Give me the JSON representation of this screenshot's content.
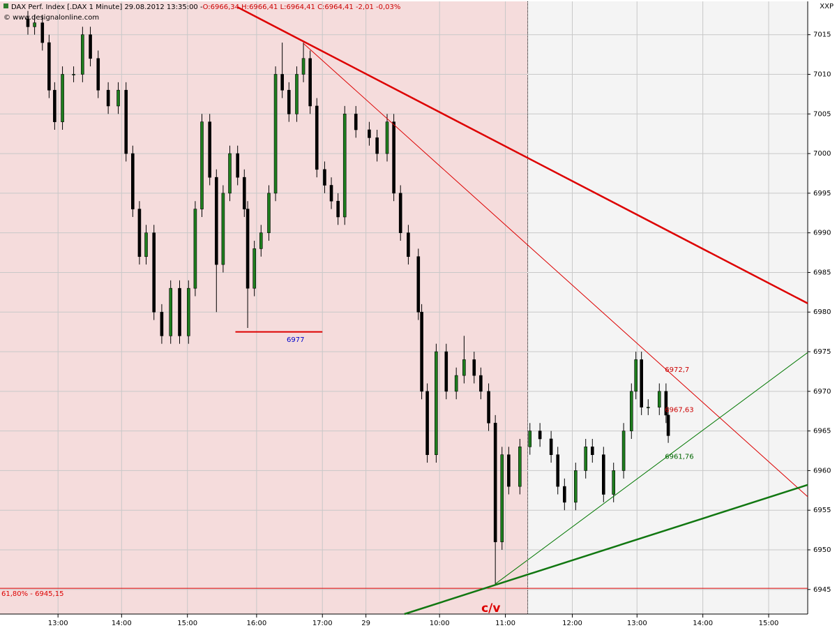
{
  "chart_data": {
    "type": "candlestick",
    "title": "DAX Perf. Index [.DAX  1 Minute] 29.08.2012 13:35:00 - ",
    "header_values": [
      {
        "text": "O:6966,34 H:6966,41 L:6964,41 C:6964,41 -2,01 -0,03%",
        "color": "#cc0000"
      }
    ],
    "copyright": "© www.designalonline.com",
    "corner_label": "XXP",
    "xlim": [
      0,
      724
    ],
    "ylim": [
      6941.9,
      7019.2
    ],
    "yticks": [
      6945,
      6950,
      6955,
      6960,
      6965,
      6970,
      6975,
      6980,
      6985,
      6990,
      6995,
      7000,
      7005,
      7010,
      7015
    ],
    "xticks": [
      {
        "value": 52,
        "label": "13:00"
      },
      {
        "value": 109,
        "label": "14:00"
      },
      {
        "value": 168,
        "label": "15:00"
      },
      {
        "value": 230,
        "label": "16:00"
      },
      {
        "value": 289,
        "label": "17:00"
      },
      {
        "value": 328,
        "label": "29"
      },
      {
        "value": 394,
        "label": "10:00"
      },
      {
        "value": 453,
        "label": "11:00"
      },
      {
        "value": 513,
        "label": "12:00"
      },
      {
        "value": 571,
        "label": "13:00"
      },
      {
        "value": 630,
        "label": "14:00"
      },
      {
        "value": 689,
        "label": "15:00"
      }
    ],
    "grid": true,
    "highlight": {
      "xlim": [
        0,
        473
      ],
      "color": "#f5dcdc",
      "background": "#f4f4f4"
    },
    "up_color": "#1e7d1e",
    "down_color": "#000000",
    "x": [
      25,
      31,
      38,
      44,
      49,
      56,
      66,
      74,
      81,
      88,
      97,
      106,
      113,
      119,
      125,
      131,
      138,
      145,
      153,
      161,
      169,
      175,
      181,
      188,
      194,
      200,
      206,
      213,
      219,
      222,
      228,
      234,
      241,
      247,
      253,
      259,
      266,
      272,
      278,
      284,
      291,
      297,
      303,
      309,
      319,
      331,
      338,
      347,
      353,
      359,
      366,
      375,
      378,
      383,
      391,
      400,
      409,
      416,
      425,
      431,
      438,
      444,
      450,
      456,
      466,
      475,
      484,
      494,
      500,
      506,
      516,
      525,
      531,
      541,
      550,
      559,
      566,
      570,
      575,
      581,
      591,
      597,
      599
    ],
    "open": [
      7017,
      7016,
      7016.5,
      7014,
      7008,
      7004,
      7010,
      7010,
      7015,
      7012,
      7008,
      7006,
      7008,
      7000,
      6993,
      6987,
      6990,
      6980,
      6977,
      6983,
      6977,
      6983,
      6993,
      7004,
      6997,
      6986,
      6995,
      7000,
      6997,
      6993,
      6983,
      6988,
      6990,
      6995,
      7010,
      7008,
      7005,
      7010,
      7012,
      7006,
      6998,
      6996,
      6994,
      6992,
      7005,
      7003,
      7002,
      7000,
      7004,
      6995,
      6990,
      6987,
      6980,
      6970,
      6962,
      6975,
      6970,
      6972,
      6974,
      6972,
      6970,
      6966,
      6951,
      6962,
      6958,
      6963,
      6965,
      6964,
      6962,
      6958,
      6956,
      6960,
      6963,
      6962,
      6957,
      6960,
      6965,
      6970,
      6974,
      6968,
      6968,
      6970,
      6967
    ],
    "high": [
      7018,
      7017.5,
      7017.5,
      7015,
      7009,
      7011,
      7011,
      7016,
      7016,
      7013,
      7009,
      7009,
      7009,
      7001,
      6994,
      6991,
      6991,
      6981,
      6984,
      6984,
      6984,
      6994,
      7005,
      7005,
      6998,
      6996,
      7001,
      7001,
      6998,
      6994,
      6989,
      6991,
      6996,
      7011,
      7014,
      7009,
      7011,
      7014,
      7013,
      7007,
      6999,
      6997,
      6995,
      7006,
      7006,
      7004,
      7003,
      7005,
      7005,
      6996,
      6991,
      6988,
      6981,
      6971,
      6976,
      6976,
      6973,
      6977,
      6975,
      6973,
      6971,
      6967,
      6963,
      6963,
      6964,
      6966,
      6966,
      6965,
      6963,
      6959,
      6961,
      6964,
      6964,
      6963,
      6961,
      6966,
      6971,
      6975,
      6975,
      6969,
      6971,
      6971,
      6968
    ],
    "low": [
      7015,
      7015,
      7013,
      7007,
      7003,
      7003,
      7009,
      7009,
      7011,
      7007,
      7005,
      7005,
      6999,
      6992,
      6986,
      6986,
      6979,
      6976,
      6976,
      6976,
      6976,
      6982,
      6992,
      6996,
      6980,
      6985,
      6994,
      6996,
      6992,
      6978,
      6982,
      6987,
      6989,
      6994,
      7007,
      7004,
      7004,
      7009,
      7005,
      6997,
      6995,
      6993,
      6991,
      6991,
      7002,
      7001,
      6999,
      6999,
      6994,
      6989,
      6986,
      6979,
      6969,
      6961,
      6961,
      6969,
      6969,
      6971,
      6971,
      6969,
      6965,
      6945.5,
      6950,
      6957,
      6957,
      6962,
      6963,
      6961,
      6957,
      6955,
      6955,
      6959,
      6961,
      6956,
      6956,
      6959,
      6964,
      6969,
      6967,
      6967,
      6967,
      6966,
      6963.5
    ],
    "close": [
      7016,
      7016.5,
      7014,
      7008,
      7004,
      7010,
      7010,
      7015,
      7012,
      7008,
      7006,
      7008,
      7000,
      6993,
      6987,
      6990,
      6980,
      6977,
      6983,
      6977,
      6983,
      6993,
      7004,
      6997,
      6986,
      6995,
      7000,
      6997,
      6993,
      6983,
      6988,
      6990,
      6995,
      7010,
      7008,
      7005,
      7010,
      7012,
      7006,
      6998,
      6996,
      6994,
      6992,
      7005,
      7003,
      7002,
      7000,
      7004,
      6995,
      6990,
      6987,
      6980,
      6970,
      6962,
      6975,
      6970,
      6972,
      6974,
      6972,
      6970,
      6966,
      6951,
      6962,
      6958,
      6963,
      6965,
      6964,
      6962,
      6958,
      6956,
      6960,
      6963,
      6962,
      6957,
      6960,
      6965,
      6970,
      6974,
      6968,
      6968,
      6970,
      6967,
      6964.41
    ],
    "lines": [
      {
        "x": [
          212.5,
          724
        ],
        "y": [
          7018.5,
          6981.1
        ],
        "color": "#dd0000",
        "style": "thick"
      },
      {
        "x": [
          272,
          724
        ],
        "y": [
          7013.9,
          6956.7
        ],
        "color": "#dd0000",
        "style": "thin"
      },
      {
        "x": [
          444,
          724
        ],
        "y": [
          6945.7,
          6974.9
        ],
        "color": "#007700",
        "style": "thin"
      },
      {
        "x": [
          362.5,
          724
        ],
        "y": [
          6941.9,
          6958.2
        ],
        "color": "#117711",
        "style": "thick"
      },
      {
        "x": [
          211,
          289
        ],
        "y": [
          6977.5,
          6977.5
        ],
        "color": "#dd0000",
        "style": "medium"
      }
    ],
    "hline": {
      "value": 6945.15,
      "label": "61,80% - 6945,15",
      "color": "#dd0000"
    },
    "annotations": [
      {
        "text": "6977",
        "x": 257,
        "y": 6976.5,
        "color": "#0000cc"
      },
      {
        "text": "6972,7",
        "x": 596,
        "y": 6972.7,
        "color": "#cc0000"
      },
      {
        "text": "6967,63",
        "x": 596,
        "y": 6967.63,
        "color": "#cc0000"
      },
      {
        "text": "6961,76",
        "x": 596,
        "y": 6961.76,
        "color": "#006600"
      },
      {
        "text": "c/v",
        "x": 440,
        "y": 6942.6,
        "color": "#dd0000",
        "big": true
      }
    ]
  }
}
